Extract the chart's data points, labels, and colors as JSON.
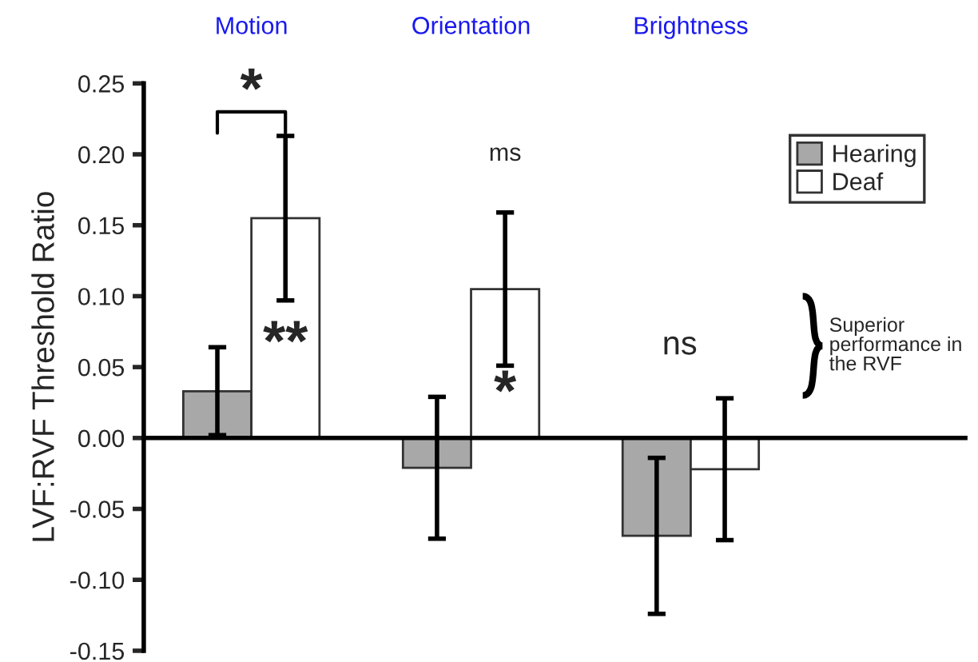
{
  "chart_data": {
    "type": "bar",
    "categories": [
      "Motion",
      "Orientation",
      "Brightness"
    ],
    "ylabel": "LVF:RVF Threshold Ratio",
    "series": [
      {
        "name": "Hearing",
        "color": "#a8a8a8",
        "values": [
          0.033,
          -0.021,
          -0.069
        ],
        "errors": [
          0.031,
          0.05,
          0.055
        ]
      },
      {
        "name": "Deaf",
        "color": "#ffffff",
        "values": [
          0.155,
          0.105,
          -0.022
        ],
        "errors": [
          0.058,
          0.054,
          0.05
        ]
      }
    ],
    "ylim": [
      -0.15,
      0.25
    ],
    "yticks": [
      {
        "value": -0.15,
        "label": "-0.15"
      },
      {
        "value": -0.1,
        "label": "-0.10"
      },
      {
        "value": -0.05,
        "label": "-0.05"
      },
      {
        "value": 0,
        "label": "0.00"
      },
      {
        "value": 0.05,
        "label": "0.05"
      },
      {
        "value": 0.1,
        "label": "0.10"
      },
      {
        "value": 0.15,
        "label": "0.15"
      },
      {
        "value": 0.2,
        "label": "0.20"
      },
      {
        "value": 0.25,
        "label": "0.25"
      }
    ],
    "annotations": [
      "*",
      {
        "text": "**",
        "x": "Motion",
        "y": 0.065
      },
      "ms",
      {
        "text": "*",
        "x": "Orientation",
        "y": 0.03
      },
      "ns",
      "Superior performance in the RVF"
    ],
    "legend": "top right"
  }
}
